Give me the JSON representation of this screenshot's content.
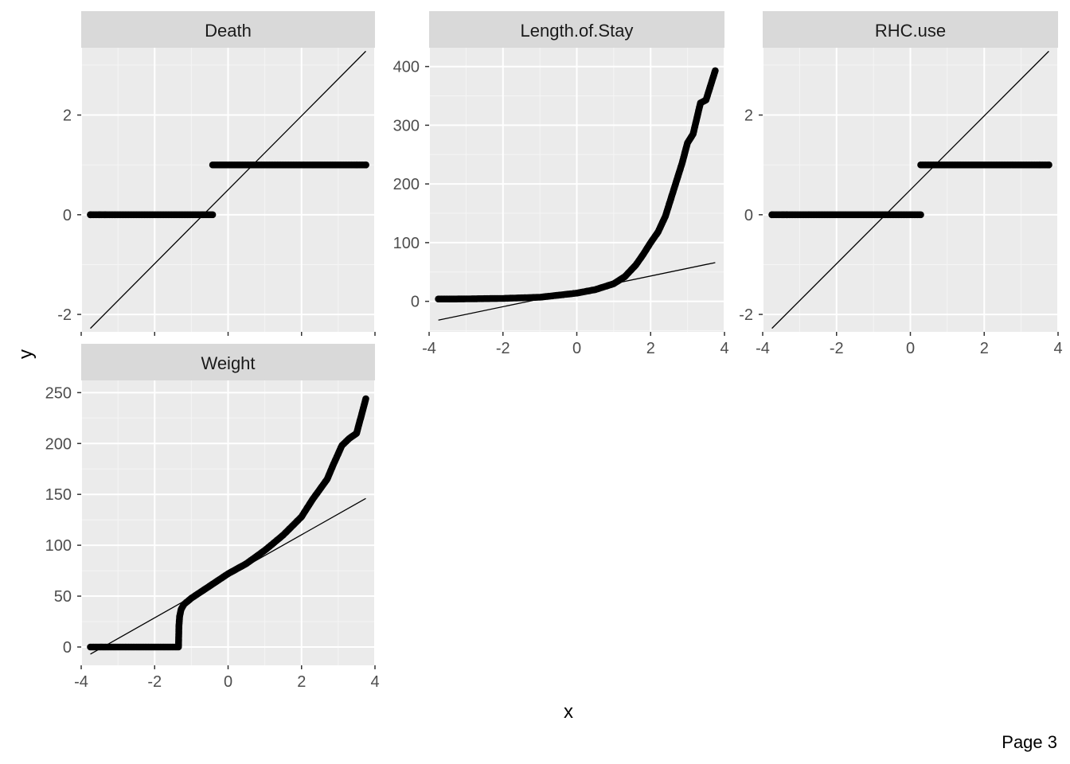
{
  "page_label": "Page 3",
  "colors": {
    "panel_bg": "#ebebeb",
    "strip_bg": "#d9d9d9",
    "grid_major": "#ffffff",
    "grid_minor": "#f5f5f5",
    "points": "#000000",
    "reference_line": "#000000"
  },
  "chart_data": [
    {
      "type": "scatter",
      "subtype": "qq-plot",
      "facet": "Death",
      "xlabel": "x",
      "ylabel": "y",
      "xlim": [
        -4,
        4
      ],
      "ylim": [
        -2.35,
        3.35
      ],
      "x_ticks": [
        -4,
        -2,
        0,
        2,
        4
      ],
      "y_ticks": [
        -2,
        0,
        2
      ],
      "x_tick_labels_shown": false,
      "groups": [
        {
          "y": 0,
          "x_from": -3.75,
          "x_to": -0.42,
          "isolated_x": [
            -3.75,
            -3.5,
            -3.35
          ]
        },
        {
          "y": 1,
          "x_from": -0.42,
          "x_to": 3.75,
          "isolated_x": [
            3.5,
            3.75
          ]
        }
      ],
      "reference_line": {
        "x1": -3.75,
        "y1": -2.28,
        "x2": 3.75,
        "y2": 3.28
      }
    },
    {
      "type": "scatter",
      "subtype": "qq-plot",
      "facet": "Length.of.Stay",
      "xlabel": "x",
      "ylabel": "y",
      "xlim": [
        -4,
        4
      ],
      "ylim": [
        -52,
        432
      ],
      "x_ticks": [
        -4,
        -2,
        0,
        2,
        4
      ],
      "y_ticks": [
        0,
        100,
        200,
        300,
        400
      ],
      "x_tick_labels_shown": true,
      "points": [
        [
          -3.75,
          4
        ],
        [
          -3.45,
          4
        ],
        [
          -3.3,
          4
        ],
        [
          -2.0,
          5
        ],
        [
          -1.0,
          7
        ],
        [
          0,
          14
        ],
        [
          0.5,
          20
        ],
        [
          1.0,
          30
        ],
        [
          1.3,
          42
        ],
        [
          1.6,
          62
        ],
        [
          1.8,
          80
        ],
        [
          2.0,
          100
        ],
        [
          2.2,
          118
        ],
        [
          2.4,
          145
        ],
        [
          2.55,
          175
        ],
        [
          2.7,
          205
        ],
        [
          2.85,
          235
        ],
        [
          3.0,
          270
        ],
        [
          3.15,
          285
        ],
        [
          3.35,
          338
        ],
        [
          3.5,
          343
        ],
        [
          3.75,
          393
        ]
      ],
      "reference_line": {
        "x1": -3.75,
        "y1": -32,
        "x2": 3.75,
        "y2": 66
      }
    },
    {
      "type": "scatter",
      "subtype": "qq-plot",
      "facet": "RHC.use",
      "xlabel": "x",
      "ylabel": "y",
      "xlim": [
        -4,
        4
      ],
      "ylim": [
        -2.35,
        3.35
      ],
      "x_ticks": [
        -4,
        -2,
        0,
        2,
        4
      ],
      "y_ticks": [
        -2,
        0,
        2
      ],
      "x_tick_labels_shown": true,
      "groups": [
        {
          "y": 0,
          "x_from": -3.75,
          "x_to": 0.28,
          "isolated_x": [
            -3.75,
            -3.45,
            -3.35
          ]
        },
        {
          "y": 1,
          "x_from": 0.28,
          "x_to": 3.75,
          "isolated_x": [
            3.5,
            3.75
          ]
        }
      ],
      "reference_line": {
        "x1": -3.75,
        "y1": -2.28,
        "x2": 3.75,
        "y2": 3.28
      }
    },
    {
      "type": "scatter",
      "subtype": "qq-plot",
      "facet": "Weight",
      "xlabel": "x",
      "ylabel": "y",
      "xlim": [
        -4,
        4
      ],
      "ylim": [
        -18,
        262
      ],
      "x_ticks": [
        -4,
        -2,
        0,
        2,
        4
      ],
      "y_ticks": [
        0,
        50,
        100,
        150,
        200,
        250
      ],
      "x_tick_labels_shown": true,
      "points": [
        [
          -3.75,
          0
        ],
        [
          -3.5,
          0
        ],
        [
          -3.3,
          0
        ],
        [
          -2.5,
          0
        ],
        [
          -1.8,
          0
        ],
        [
          -1.35,
          0
        ],
        [
          -1.34,
          20
        ],
        [
          -1.32,
          30
        ],
        [
          -1.28,
          37
        ],
        [
          -1.2,
          42
        ],
        [
          -1.0,
          48
        ],
        [
          -0.5,
          60
        ],
        [
          0,
          72
        ],
        [
          0.5,
          82
        ],
        [
          1.0,
          95
        ],
        [
          1.5,
          110
        ],
        [
          2.0,
          128
        ],
        [
          2.3,
          145
        ],
        [
          2.5,
          155
        ],
        [
          2.7,
          165
        ],
        [
          2.85,
          178
        ],
        [
          3.0,
          190
        ],
        [
          3.1,
          198
        ],
        [
          3.3,
          205
        ],
        [
          3.5,
          210
        ],
        [
          3.75,
          244
        ]
      ],
      "reference_line": {
        "x1": -3.75,
        "y1": -7,
        "x2": 3.75,
        "y2": 146
      }
    }
  ]
}
